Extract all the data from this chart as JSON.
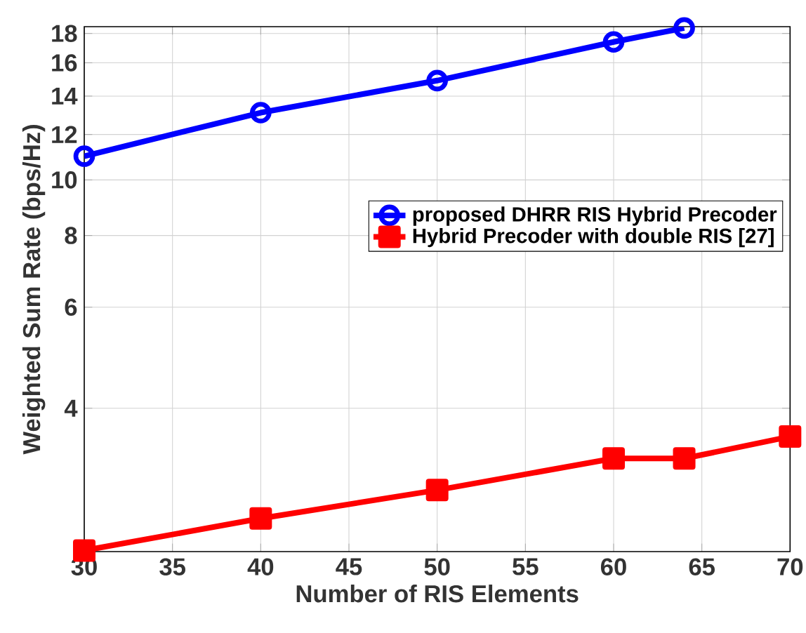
{
  "chart_data": {
    "type": "line",
    "xlabel": "Number of RIS Elements",
    "ylabel": "Weighted Sum Rate (bps/Hz)",
    "series": [
      {
        "name": "proposed DHRR RIS Hybrid Precoder",
        "color": "#0000ff",
        "marker": "circle",
        "x": [
          30,
          40,
          50,
          60,
          64
        ],
        "values": [
          11.0,
          13.1,
          14.9,
          17.4,
          18.4
        ]
      },
      {
        "name": "Hybrid Precoder with double RIS [27]",
        "color": "#ff0000",
        "marker": "square",
        "x": [
          30,
          40,
          50,
          60,
          64,
          70
        ],
        "values": [
          2.26,
          2.57,
          2.88,
          3.27,
          3.27,
          3.57
        ]
      }
    ],
    "xlim": [
      30,
      70
    ],
    "xticks": [
      30,
      35,
      40,
      45,
      50,
      55,
      60,
      65,
      70
    ],
    "ylim": [
      2.25,
      18.5
    ],
    "yticks": [
      4,
      6,
      8,
      10,
      12,
      14,
      16,
      18
    ],
    "log": "y",
    "grid": true,
    "legend": "right",
    "line_style": "solid"
  }
}
